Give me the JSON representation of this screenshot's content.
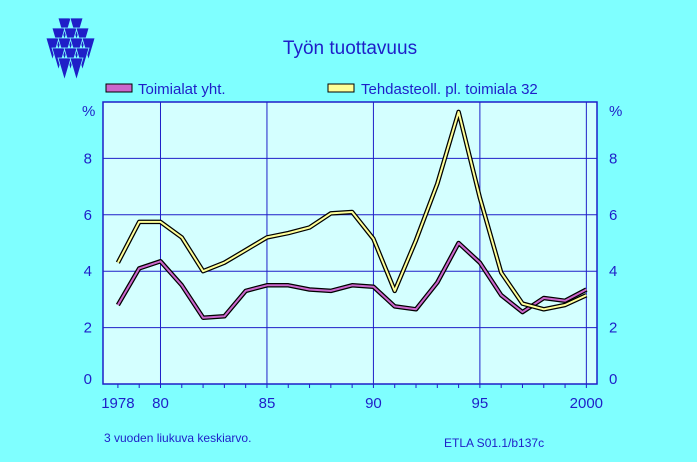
{
  "chart_data": {
    "type": "line",
    "title": "Työn  tuottavuus",
    "unit_left": "%",
    "unit_right": "%",
    "x": [
      1978,
      1979,
      1980,
      1981,
      1982,
      1983,
      1984,
      1985,
      1986,
      1987,
      1988,
      1989,
      1990,
      1991,
      1992,
      1993,
      1994,
      1995,
      1996,
      1997,
      1998,
      1999,
      2000
    ],
    "xlim": [
      1977.3,
      2000.5
    ],
    "ylim": [
      0,
      10
    ],
    "x_tick_values": [
      1978,
      1980,
      1985,
      1990,
      1995,
      2000
    ],
    "x_tick_labels": [
      "1978",
      "80",
      "85",
      "90",
      "95",
      "2000"
    ],
    "y_ticks": [
      0,
      2,
      4,
      6,
      8
    ],
    "grid": true,
    "legend_position": "top",
    "series": [
      {
        "name": "Toimialat yht.",
        "color": "#cc66cc",
        "values": [
          2.8,
          4.1,
          4.35,
          3.5,
          2.35,
          2.4,
          3.3,
          3.5,
          3.5,
          3.35,
          3.3,
          3.5,
          3.45,
          2.75,
          2.65,
          3.6,
          5.0,
          4.3,
          3.15,
          2.55,
          3.05,
          2.95,
          3.35
        ]
      },
      {
        "name": "Tehdasteoll. pl. toimiala 32",
        "color": "#ffff99",
        "values": [
          4.3,
          5.75,
          5.75,
          5.2,
          4.0,
          4.3,
          4.75,
          5.2,
          5.35,
          5.55,
          6.05,
          6.1,
          5.15,
          3.3,
          5.1,
          7.1,
          9.65,
          6.6,
          3.95,
          2.85,
          2.65,
          2.8,
          3.15
        ]
      }
    ],
    "footnote": "3 vuoden liukuva keskiarvo.",
    "source": "ETLA S01.1/b137c"
  },
  "logo_icon": "etla-triangles-logo"
}
